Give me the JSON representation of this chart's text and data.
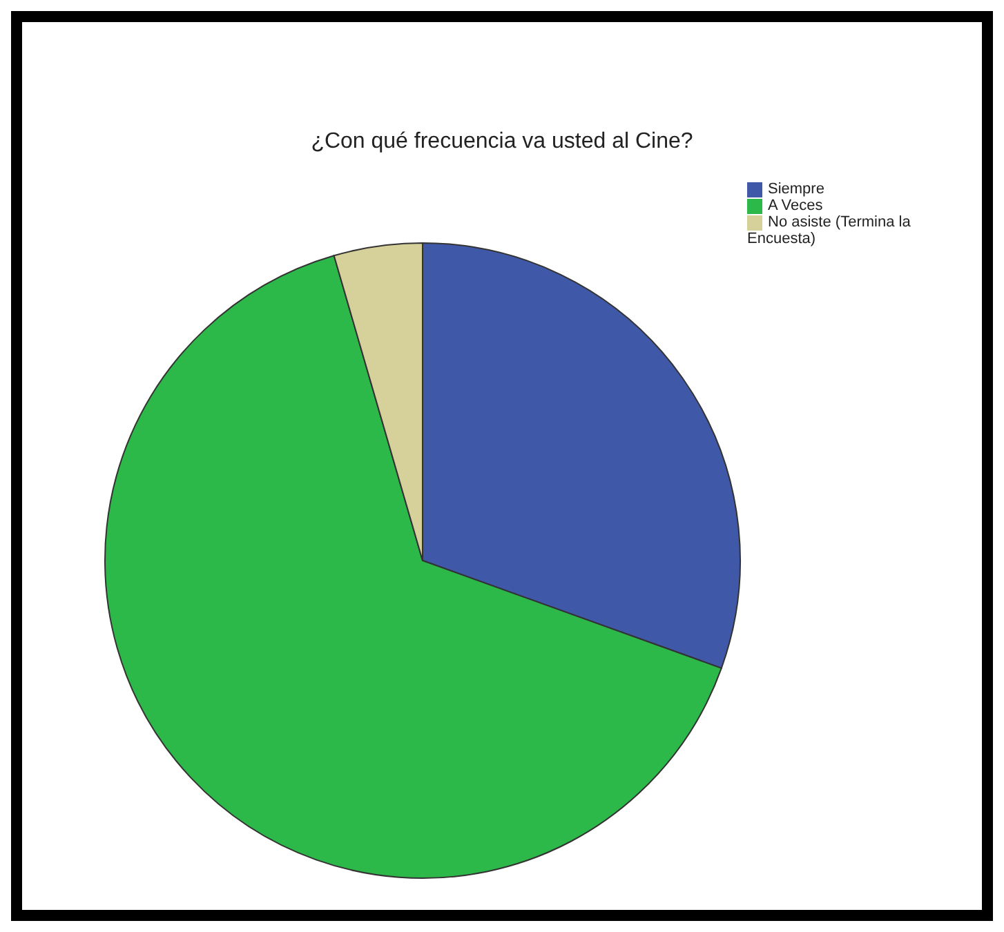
{
  "chart_data": {
    "type": "pie",
    "title": "¿Con qué frecuencia va usted al Cine?",
    "categories": [
      "Siempre",
      "A Veces",
      "No asiste (Termina la Encuesta)"
    ],
    "values": [
      30.5,
      65,
      4.5
    ],
    "colors": [
      "#3f58a8",
      "#2db84a",
      "#d6d09a"
    ],
    "legend": "top right"
  }
}
